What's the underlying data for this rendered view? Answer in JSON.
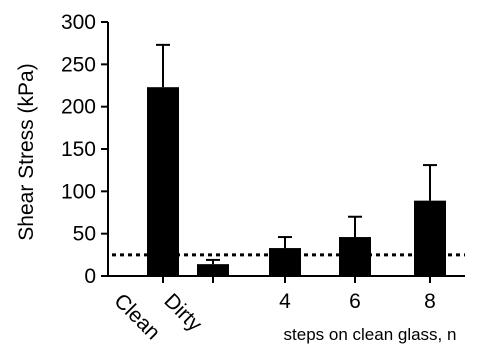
{
  "chart_data": {
    "type": "bar",
    "title": "",
    "ylabel": "Shear Stress (kPa)",
    "xlabel": "steps on clean glass, n",
    "categories": [
      "Clean",
      "Dirty",
      "4",
      "6",
      "8"
    ],
    "rotated_categories": [
      "Clean",
      "Dirty"
    ],
    "values": [
      223,
      14,
      33,
      46,
      89
    ],
    "error_upper": [
      273,
      19,
      46,
      70,
      131
    ],
    "ylim": [
      0,
      300
    ],
    "yticks": [
      0,
      50,
      100,
      150,
      200,
      250,
      300
    ],
    "reference_line": {
      "value": 25,
      "style": "dotted"
    },
    "bar_color": "#000000",
    "grid": false,
    "legend": "none"
  }
}
